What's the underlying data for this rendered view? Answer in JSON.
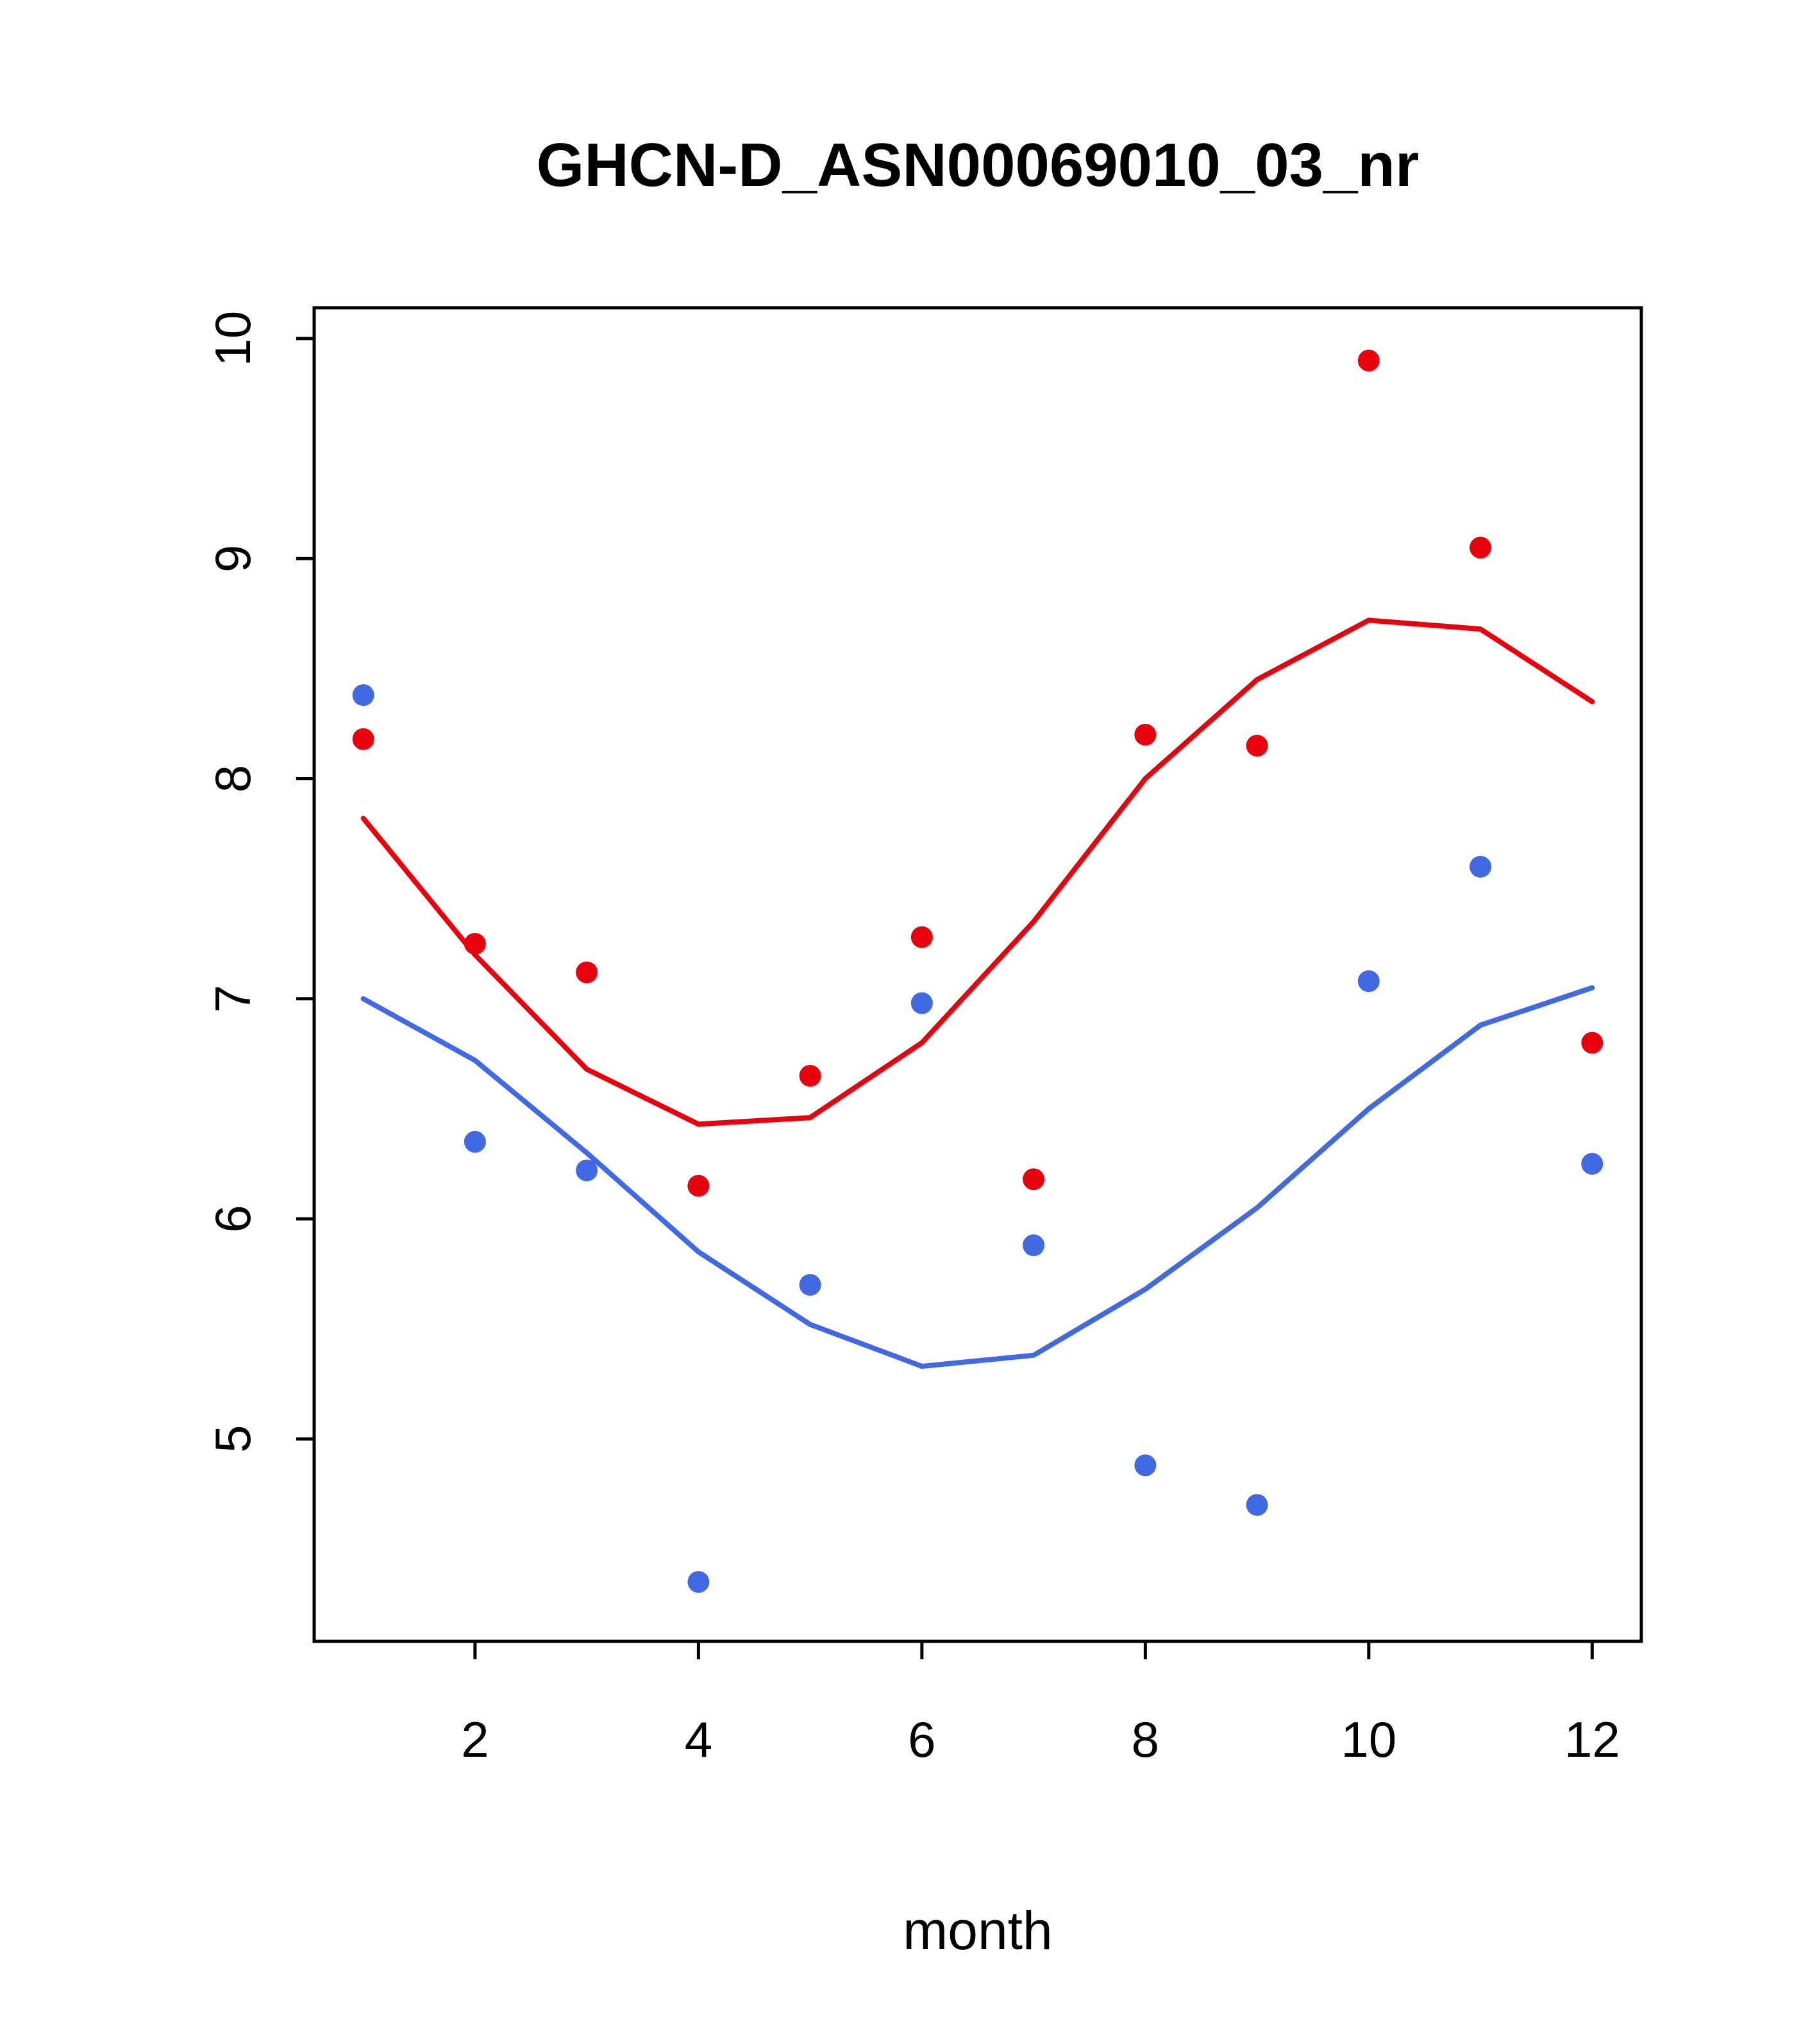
{
  "chart_data": {
    "type": "scatter",
    "title": "GHCN-D_ASN00069010_03_nr",
    "xlabel": "month",
    "ylabel": "",
    "x": [
      1,
      2,
      3,
      4,
      5,
      6,
      7,
      8,
      9,
      10,
      11,
      12
    ],
    "xlim": [
      0.56,
      12.44
    ],
    "ylim": [
      4.08,
      10.14
    ],
    "xticks": [
      2,
      4,
      6,
      8,
      10,
      12
    ],
    "yticks": [
      5,
      6,
      7,
      8,
      9,
      10
    ],
    "grid": "off",
    "legend": "none",
    "colors": {
      "red": "#e8000d",
      "blue": "#4169e1",
      "axis": "#000000",
      "background": "#ffffff"
    },
    "series": [
      {
        "name": "red-smooth-line",
        "style": "line",
        "color": "#e8000d",
        "values": [
          7.82,
          7.2,
          6.68,
          6.43,
          6.46,
          6.8,
          7.35,
          8.0,
          8.45,
          8.72,
          8.68,
          8.35
        ]
      },
      {
        "name": "blue-smooth-line",
        "style": "line",
        "color": "#4169e1",
        "values": [
          7.0,
          6.72,
          6.3,
          5.85,
          5.52,
          5.33,
          5.38,
          5.68,
          6.05,
          6.5,
          6.88,
          7.05
        ]
      },
      {
        "name": "red-points",
        "style": "points",
        "color": "#e8000d",
        "values": [
          8.18,
          7.25,
          7.12,
          6.15,
          6.65,
          7.28,
          6.18,
          8.2,
          8.15,
          9.9,
          9.05,
          6.8
        ]
      },
      {
        "name": "blue-points",
        "style": "points",
        "color": "#4169e1",
        "values": [
          8.38,
          6.35,
          6.22,
          4.35,
          5.7,
          6.98,
          5.88,
          4.88,
          4.7,
          7.08,
          7.6,
          6.25
        ]
      }
    ]
  }
}
